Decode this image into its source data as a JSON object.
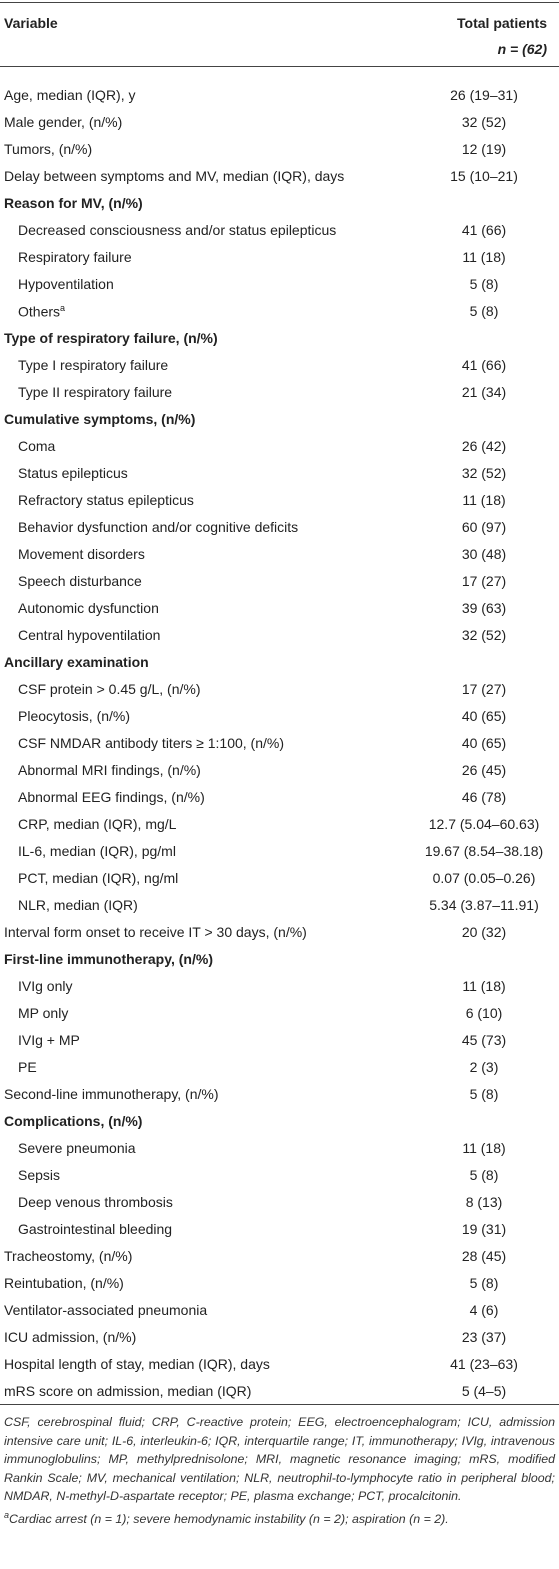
{
  "header": {
    "columns": [
      "Variable",
      "Total patients"
    ],
    "n": "n = (62)"
  },
  "table": {
    "rows": [
      {
        "label": "Age, median (IQR), y",
        "value": "26 (19–31)"
      },
      {
        "label": "Male gender, (n/%)",
        "value": "32 (52)"
      },
      {
        "label": "Tumors, (n/%)",
        "value": "12 (19)"
      },
      {
        "label": "Delay between symptoms and MV, median (IQR), days",
        "value": "15 (10–21)"
      },
      {
        "label": "Reason for MV, (n/%)",
        "rows": [
          {
            "label": "Decreased consciousness and/or status epilepticus",
            "value": "41 (66)"
          },
          {
            "label": "Respiratory failure",
            "value": "11 (18)"
          },
          {
            "label": "Hypoventilation",
            "value": "5 (8)"
          },
          {
            "label": "Others",
            "note": "a",
            "value": "5 (8)"
          }
        ]
      },
      {
        "label": "Type of respiratory failure, (n/%)",
        "rows": [
          {
            "label": "Type I respiratory failure",
            "value": "41 (66)"
          },
          {
            "label": "Type II respiratory failure",
            "value": "21 (34)"
          }
        ]
      },
      {
        "label": "Cumulative symptoms, (n/%)",
        "rows": [
          {
            "label": "Coma",
            "value": "26 (42)"
          },
          {
            "label": "Status epilepticus",
            "value": "32 (52)"
          },
          {
            "label": "Refractory status epilepticus",
            "value": "11 (18)"
          },
          {
            "label": "Behavior dysfunction and/or cognitive deficits",
            "value": "60 (97)"
          },
          {
            "label": "Movement disorders",
            "value": "30 (48)"
          },
          {
            "label": "Speech disturbance",
            "value": "17 (27)"
          },
          {
            "label": "Autonomic dysfunction",
            "value": "39 (63)"
          },
          {
            "label": "Central hypoventilation",
            "value": "32 (52)"
          }
        ]
      },
      {
        "label": "Ancillary examination",
        "rows": [
          {
            "label": "CSF protein > 0.45 g/L, (n/%)",
            "value": "17 (27)"
          },
          {
            "label": "Pleocytosis, (n/%)",
            "value": "40 (65)"
          },
          {
            "label": "CSF NMDAR antibody titers ≥ 1:100, (n/%)",
            "value": "40 (65)"
          },
          {
            "label": "Abnormal MRI findings, (n/%)",
            "value": "26 (45)"
          },
          {
            "label": "Abnormal EEG findings, (n/%)",
            "value": "46 (78)"
          },
          {
            "label": "CRP, median (IQR), mg/L",
            "value": "12.7 (5.04–60.63)"
          },
          {
            "label": "IL-6, median (IQR), pg/ml",
            "value": "19.67 (8.54–38.18)"
          },
          {
            "label": "PCT, median (IQR), ng/ml",
            "value": "0.07 (0.05–0.26)"
          },
          {
            "label": "NLR, median (IQR)",
            "value": "5.34 (3.87–11.91)"
          }
        ]
      },
      {
        "label": "Interval form onset to receive IT > 30 days, (n/%)",
        "value": "20 (32)"
      },
      {
        "label": "First-line immunotherapy, (n/%)",
        "rows": [
          {
            "label": "IVIg only",
            "value": "11 (18)"
          },
          {
            "label": "MP only",
            "value": "6 (10)"
          },
          {
            "label": "IVIg + MP",
            "value": "45 (73)"
          },
          {
            "label": "PE",
            "value": "2 (3)"
          }
        ]
      },
      {
        "label": "Second-line immunotherapy, (n/%)",
        "value": "5 (8)"
      },
      {
        "label": "Complications, (n/%)",
        "rows": [
          {
            "label": "Severe pneumonia",
            "value": "11 (18)"
          },
          {
            "label": "Sepsis",
            "value": "5 (8)"
          },
          {
            "label": "Deep venous thrombosis",
            "value": "8 (13)"
          },
          {
            "label": "Gastrointestinal bleeding",
            "value": "19 (31)"
          }
        ]
      },
      {
        "label": "Tracheostomy, (n/%)",
        "value": "28 (45)"
      },
      {
        "label": "Reintubation, (n/%)",
        "value": "5 (8)"
      },
      {
        "label": "Ventilator-associated pneumonia",
        "value": "4 (6)"
      },
      {
        "label": "ICU admission, (n/%)",
        "value": "23 (37)"
      },
      {
        "label": "Hospital length of stay, median (IQR), days",
        "value": "41 (23–63)"
      },
      {
        "label": "mRS score on admission, median (IQR)",
        "value": "5 (4–5)"
      }
    ]
  },
  "footnotes": {
    "abbreviations": "CSF, cerebrospinal fluid; CRP, C-reactive protein; EEG, electroencephalogram; ICU, admission intensive care unit; IL-6, interleukin-6; IQR, interquartile range; IT, immunotherapy; IVIg, intravenous immunoglobulins; MP, methylprednisolone; MRI, magnetic resonance imaging; mRS, modified Rankin Scale; MV, mechanical ventilation; NLR, neutrophil-to-lymphocyte ratio in peripheral blood; NMDAR, N-methyl-D-aspartate receptor; PE, plasma exchange; PCT, procalcitonin.",
    "notes": [
      {
        "mark": "a",
        "text": "Cardiac arrest (n = 1); severe hemodynamic instability (n = 2); aspiration (n = 2)."
      }
    ]
  }
}
